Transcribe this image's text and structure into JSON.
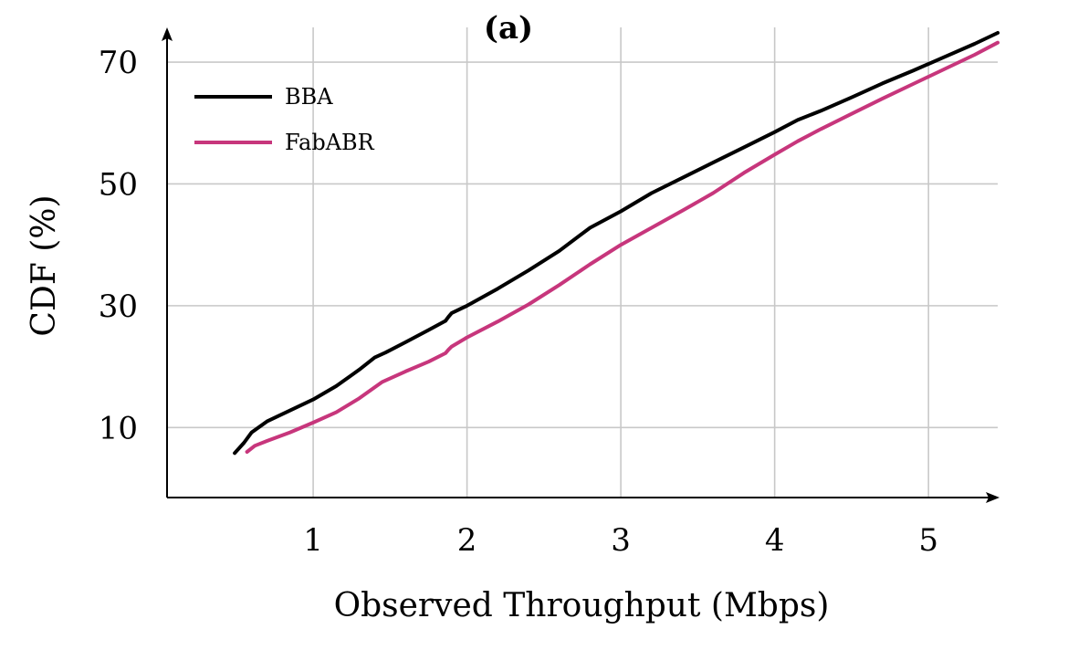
{
  "chart_data": {
    "type": "line",
    "title": "(a)",
    "xlabel": "Observed Throughput (Mbps)",
    "ylabel": "CDF (%)",
    "xlim": [
      0.05,
      5.45
    ],
    "ylim": [
      -1.5,
      76
    ],
    "x_ticks": [
      1,
      2,
      3,
      4,
      5
    ],
    "y_ticks": [
      10,
      30,
      50,
      70
    ],
    "grid": true,
    "legend_position": "top-left",
    "series": [
      {
        "name": "BBA",
        "color": "#000000",
        "x": [
          0.49,
          0.55,
          0.6,
          0.7,
          0.85,
          1.0,
          1.15,
          1.3,
          1.4,
          1.47,
          1.6,
          1.75,
          1.86,
          1.88,
          1.9,
          2.0,
          2.2,
          2.4,
          2.6,
          2.8,
          3.0,
          3.2,
          3.4,
          3.6,
          3.8,
          4.0,
          4.15,
          4.3,
          4.5,
          4.7,
          4.9,
          5.1,
          5.3,
          5.45
        ],
        "y": [
          5.8,
          7.5,
          9.2,
          11.0,
          12.8,
          14.6,
          16.8,
          19.5,
          21.5,
          22.3,
          24.0,
          26.0,
          27.5,
          28.2,
          28.8,
          30.0,
          32.8,
          35.8,
          39.0,
          42.8,
          45.5,
          48.5,
          51.0,
          53.5,
          56.0,
          58.5,
          60.5,
          62.0,
          64.2,
          66.5,
          68.6,
          70.8,
          73.0,
          74.8
        ]
      },
      {
        "name": "FabABR",
        "color": "#c7367c",
        "x": [
          0.57,
          0.62,
          0.7,
          0.85,
          1.0,
          1.15,
          1.3,
          1.45,
          1.6,
          1.75,
          1.86,
          1.88,
          1.9,
          2.0,
          2.2,
          2.4,
          2.6,
          2.8,
          3.0,
          3.2,
          3.4,
          3.6,
          3.8,
          4.0,
          4.15,
          4.3,
          4.5,
          4.7,
          4.9,
          5.1,
          5.3,
          5.45
        ],
        "y": [
          6.0,
          7.0,
          7.8,
          9.2,
          10.8,
          12.5,
          14.8,
          17.5,
          19.2,
          20.8,
          22.2,
          22.8,
          23.3,
          24.8,
          27.4,
          30.2,
          33.4,
          36.8,
          40.0,
          42.8,
          45.6,
          48.5,
          51.8,
          54.8,
          57.0,
          59.0,
          61.5,
          64.0,
          66.4,
          68.8,
          71.2,
          73.2
        ]
      }
    ]
  }
}
